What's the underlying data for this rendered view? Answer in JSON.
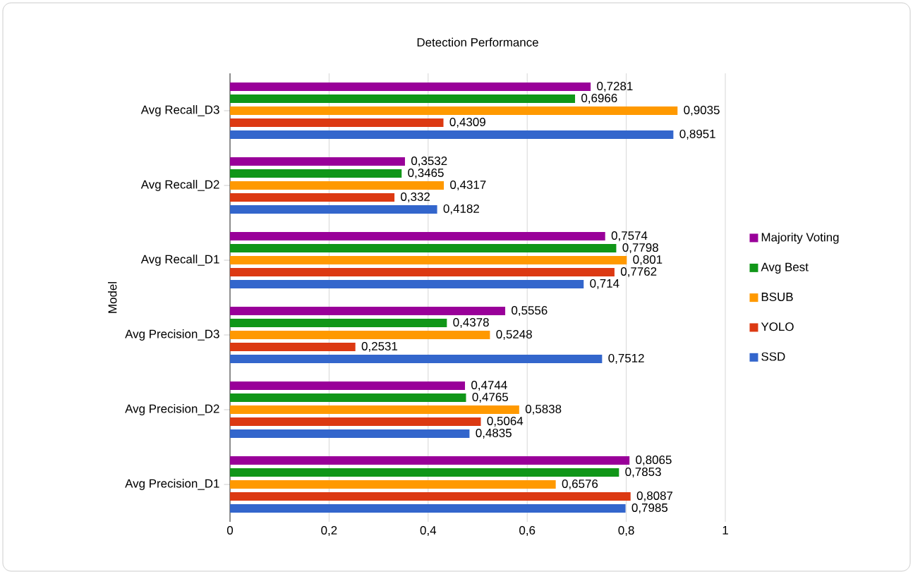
{
  "chart_data": {
    "type": "bar",
    "orientation": "horizontal",
    "title": "Detection Performance",
    "ylabel": "Model",
    "categories": [
      "Avg Recall_D3",
      "Avg Recall_D2",
      "Avg Recall_D1",
      "Avg Precision_D3",
      "Avg Precision_D2",
      "Avg Precision_D1"
    ],
    "series": [
      {
        "name": "Majority Voting",
        "color": "#990099",
        "values": [
          0.7281,
          0.3532,
          0.7574,
          0.5556,
          0.4744,
          0.8065
        ],
        "value_labels": [
          "0,7281",
          "0,3532",
          "0,7574",
          "0,5556",
          "0,4744",
          "0,8065"
        ]
      },
      {
        "name": "Avg Best",
        "color": "#109618",
        "values": [
          0.6966,
          0.3465,
          0.7798,
          0.4378,
          0.4765,
          0.7853
        ],
        "value_labels": [
          "0,6966",
          "0,3465",
          "0,7798",
          "0,4378",
          "0,4765",
          "0,7853"
        ]
      },
      {
        "name": "BSUB",
        "color": "#ff9900",
        "values": [
          0.9035,
          0.4317,
          0.801,
          0.5248,
          0.5838,
          0.6576
        ],
        "value_labels": [
          "0,9035",
          "0,4317",
          "0,801",
          "0,5248",
          "0,5838",
          "0,6576"
        ]
      },
      {
        "name": "YOLO",
        "color": "#dc3912",
        "values": [
          0.4309,
          0.332,
          0.7762,
          0.2531,
          0.5064,
          0.8087
        ],
        "value_labels": [
          "0,4309",
          "0,332",
          "0,7762",
          "0,2531",
          "0,5064",
          "0,8087"
        ]
      },
      {
        "name": "SSD",
        "color": "#3366cc",
        "values": [
          0.8951,
          0.4182,
          0.714,
          0.7512,
          0.4835,
          0.7985
        ],
        "value_labels": [
          "0,8951",
          "0,4182",
          "0,714",
          "0,7512",
          "0,4835",
          "0,7985"
        ]
      }
    ],
    "xlim": [
      0,
      1
    ],
    "xticks": [
      0,
      {
        "value": 0.2,
        "label": "0,2"
      },
      {
        "value": 0.4,
        "label": "0,4"
      },
      {
        "value": 0.6,
        "label": "0,6"
      },
      {
        "value": 0.8,
        "label": "0,8"
      },
      1
    ],
    "grid": "x",
    "legend": "right"
  }
}
